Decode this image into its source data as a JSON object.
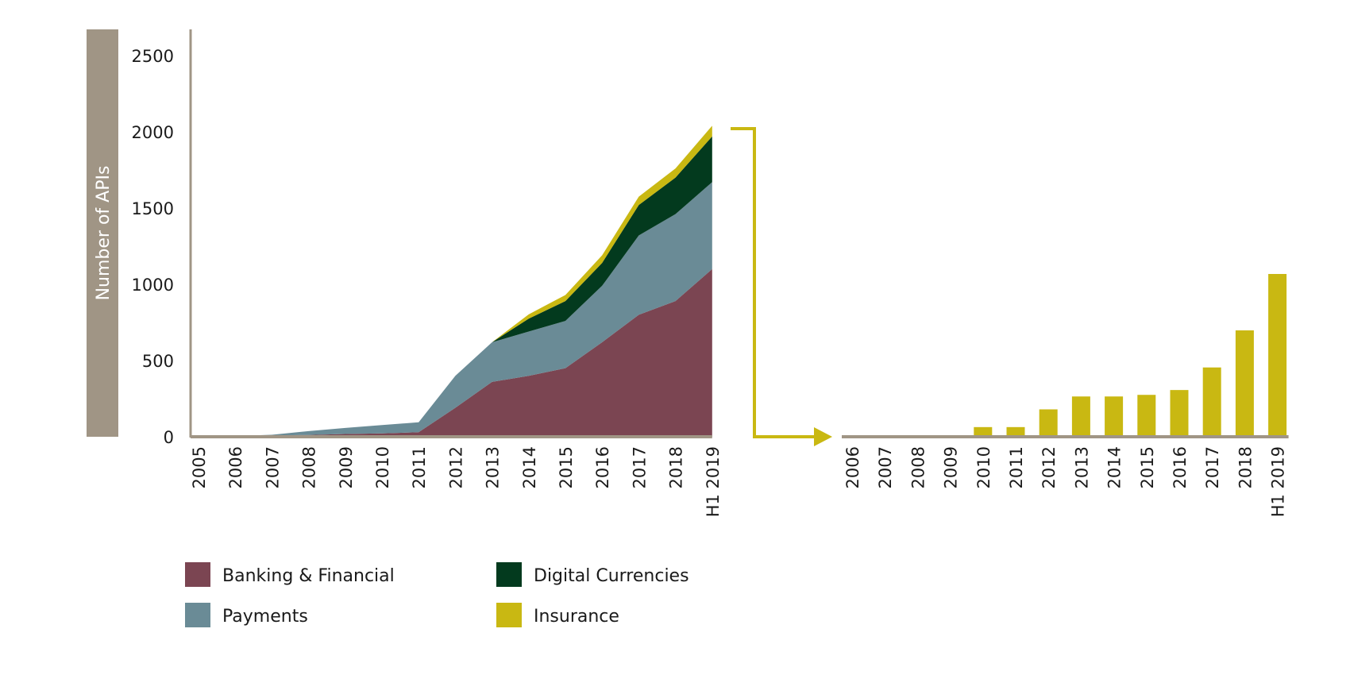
{
  "chart_data": [
    {
      "type": "area",
      "stacked": true,
      "ylabel": "Number of APIs",
      "ylim": [
        0,
        2600
      ],
      "yticks": [
        0,
        500,
        1000,
        1500,
        2000,
        2500
      ],
      "categories": [
        "2005",
        "2006",
        "2007",
        "2008",
        "2009",
        "2010",
        "2011",
        "2012",
        "2013",
        "2014",
        "2015",
        "2016",
        "2017",
        "2018",
        "H1 2019"
      ],
      "series": [
        {
          "name": "Banking & Financial",
          "color": "#7b4552",
          "values": [
            5,
            5,
            8,
            12,
            18,
            22,
            30,
            190,
            360,
            400,
            450,
            620,
            800,
            890,
            1100
          ]
        },
        {
          "name": "Payments",
          "color": "#6a8b96",
          "values": [
            0,
            0,
            5,
            25,
            40,
            55,
            65,
            210,
            260,
            290,
            310,
            370,
            520,
            570,
            570
          ]
        },
        {
          "name": "Digital Currencies",
          "color": "#033a1e",
          "values": [
            0,
            0,
            0,
            0,
            0,
            0,
            0,
            0,
            0,
            85,
            130,
            150,
            200,
            240,
            300
          ]
        },
        {
          "name": "Insurance",
          "color": "#c9b812",
          "values": [
            0,
            0,
            0,
            0,
            0,
            0,
            0,
            0,
            0,
            28,
            40,
            50,
            55,
            60,
            70
          ]
        }
      ],
      "grid": false
    },
    {
      "type": "bar",
      "series_name": "Insurance",
      "color": "#c9b812",
      "categories": [
        "2006",
        "2007",
        "2008",
        "2009",
        "2010",
        "2011",
        "2012",
        "2013",
        "2014",
        "2015",
        "2016",
        "2017",
        "2018",
        "H1 2019"
      ],
      "values": [
        0,
        0,
        0,
        0,
        6,
        6,
        17,
        25,
        25,
        26,
        29,
        43,
        66,
        101
      ],
      "grid": false
    }
  ],
  "legend": [
    {
      "label": "Banking & Financial",
      "color": "#7b4552"
    },
    {
      "label": "Digital Currencies",
      "color": "#033a1e"
    },
    {
      "label": "Payments",
      "color": "#6a8b96"
    },
    {
      "label": "Insurance",
      "color": "#c9b812"
    }
  ],
  "axis_color": "#a09585"
}
